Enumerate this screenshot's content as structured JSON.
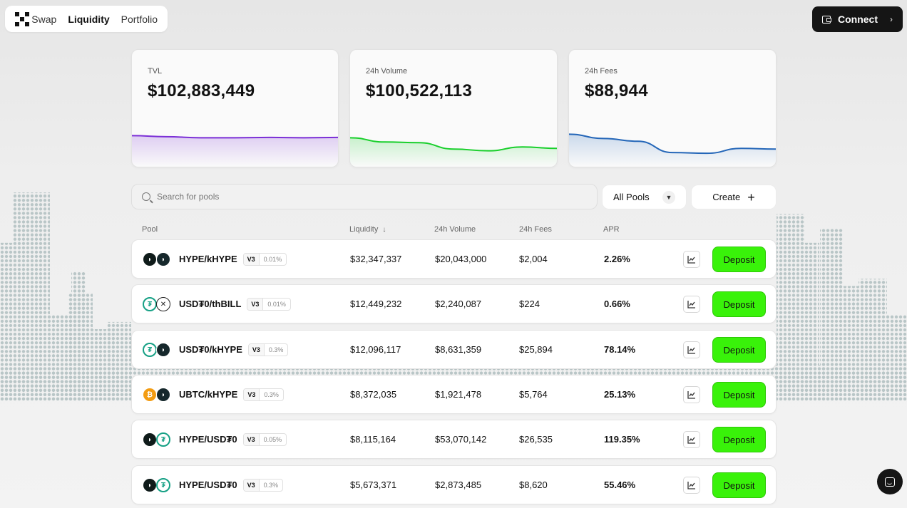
{
  "nav": {
    "links": [
      "Swap",
      "Liquidity",
      "Portfolio"
    ],
    "active": "Liquidity",
    "connect_label": "Connect"
  },
  "stats": [
    {
      "label": "TVL",
      "value": "$102,883,449",
      "color": "#7b2fd6",
      "trend": [
        0.78,
        0.75,
        0.72,
        0.72,
        0.73,
        0.72,
        0.73
      ]
    },
    {
      "label": "24h Volume",
      "value": "$100,522,113",
      "color": "#18cf2b",
      "trend": [
        0.72,
        0.6,
        0.58,
        0.4,
        0.35,
        0.46,
        0.42
      ]
    },
    {
      "label": "24h Fees",
      "value": "$88,944",
      "color": "#2466b8",
      "trend": [
        0.82,
        0.7,
        0.62,
        0.3,
        0.28,
        0.42,
        0.4
      ]
    }
  ],
  "search": {
    "placeholder": "Search for pools"
  },
  "filter": {
    "label": "All Pools"
  },
  "create": {
    "label": "Create"
  },
  "table": {
    "headers": {
      "pool": "Pool",
      "liquidity": "Liquidity",
      "volume": "24h Volume",
      "fees": "24h Fees",
      "apr": "APR"
    },
    "rows": [
      {
        "pair": "HYPE/kHYPE",
        "tokens": [
          "hype",
          "khype"
        ],
        "version": "V3",
        "fee": "0.01%",
        "liquidity": "$32,347,337",
        "volume": "$20,043,000",
        "fees": "$2,004",
        "apr": "2.26%",
        "action": "Deposit"
      },
      {
        "pair": "USD₮0/thBILL",
        "tokens": [
          "usdt",
          "thbill"
        ],
        "version": "V3",
        "fee": "0.01%",
        "liquidity": "$12,449,232",
        "volume": "$2,240,087",
        "fees": "$224",
        "apr": "0.66%",
        "action": "Deposit"
      },
      {
        "pair": "USD₮0/kHYPE",
        "tokens": [
          "usdt",
          "khype"
        ],
        "version": "V3",
        "fee": "0.3%",
        "liquidity": "$12,096,117",
        "volume": "$8,631,359",
        "fees": "$25,894",
        "apr": "78.14%",
        "action": "Deposit"
      },
      {
        "pair": "UBTC/kHYPE",
        "tokens": [
          "ubtc",
          "khype"
        ],
        "version": "V3",
        "fee": "0.3%",
        "liquidity": "$8,372,035",
        "volume": "$1,921,478",
        "fees": "$5,764",
        "apr": "25.13%",
        "action": "Deposit"
      },
      {
        "pair": "HYPE/USD₮0",
        "tokens": [
          "hype",
          "usdt"
        ],
        "version": "V3",
        "fee": "0.05%",
        "liquidity": "$8,115,164",
        "volume": "$53,070,142",
        "fees": "$26,535",
        "apr": "119.35%",
        "action": "Deposit"
      },
      {
        "pair": "HYPE/USD₮0",
        "tokens": [
          "hype",
          "usdt"
        ],
        "version": "V3",
        "fee": "0.3%",
        "liquidity": "$5,673,371",
        "volume": "$2,873,485",
        "fees": "$8,620",
        "apr": "55.46%",
        "action": "Deposit"
      }
    ]
  },
  "colors": {
    "deposit": "#39f20a",
    "dark": "#151515"
  },
  "icons": [
    "logo-icon",
    "wallet-icon",
    "chevron-right-icon",
    "search-icon",
    "chevron-down-icon",
    "plus-icon",
    "sort-down-icon",
    "chart-icon",
    "chat-icon"
  ]
}
